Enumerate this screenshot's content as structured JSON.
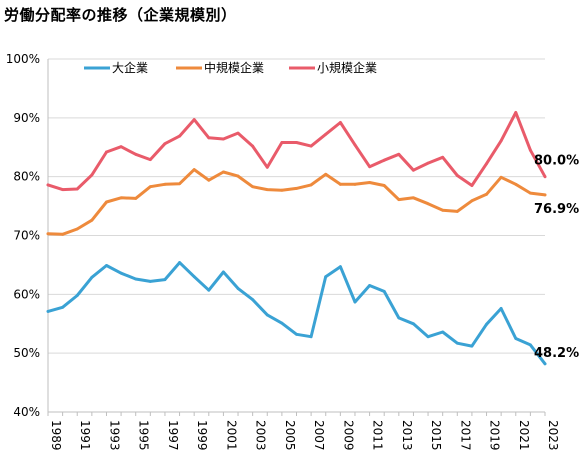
{
  "title": "労働分配率の推移（企業規模別）",
  "chart_data": {
    "type": "line",
    "title": "労働分配率の推移（企業規模別）",
    "x": [
      1989,
      1990,
      1991,
      1992,
      1993,
      1994,
      1995,
      1996,
      1997,
      1998,
      1999,
      2000,
      2001,
      2002,
      2003,
      2004,
      2005,
      2006,
      2007,
      2008,
      2009,
      2010,
      2011,
      2012,
      2013,
      2014,
      2015,
      2016,
      2017,
      2018,
      2019,
      2020,
      2021,
      2022,
      2023
    ],
    "x_tick_labels": [
      "1989",
      "1991",
      "1993",
      "1995",
      "1997",
      "1999",
      "2001",
      "2003",
      "2005",
      "2007",
      "2009",
      "2011",
      "2013",
      "2015",
      "2017",
      "2019",
      "2021",
      "2023"
    ],
    "ylim": [
      40,
      100
    ],
    "y_tick_labels": [
      "40%",
      "50%",
      "60%",
      "70%",
      "80%",
      "90%",
      "100%"
    ],
    "grid": true,
    "legend_position": "top-left",
    "series": [
      {
        "name": "大企業",
        "color": "#3AA2D4",
        "values": [
          57.1,
          57.8,
          59.8,
          62.9,
          64.9,
          63.6,
          62.6,
          62.2,
          62.5,
          65.4,
          63.0,
          60.7,
          63.8,
          61.0,
          59.1,
          56.5,
          55.1,
          53.2,
          52.8,
          63.0,
          64.7,
          58.7,
          61.5,
          60.5,
          56.0,
          55.0,
          52.8,
          53.6,
          51.7,
          51.2,
          54.9,
          57.6,
          52.5,
          51.4,
          48.2
        ],
        "end_label": "48.2%"
      },
      {
        "name": "中規模企業",
        "color": "#EE8A3C",
        "values": [
          70.3,
          70.2,
          71.1,
          72.6,
          75.7,
          76.4,
          76.3,
          78.3,
          78.7,
          78.8,
          81.2,
          79.4,
          80.8,
          80.1,
          78.3,
          77.8,
          77.7,
          78.0,
          78.6,
          80.4,
          78.7,
          78.7,
          79.0,
          78.5,
          76.1,
          76.4,
          75.4,
          74.3,
          74.1,
          75.9,
          77.0,
          79.9,
          78.7,
          77.2,
          76.9
        ],
        "end_label": "76.9%"
      },
      {
        "name": "小規模企業",
        "color": "#E95B6A",
        "values": [
          78.6,
          77.8,
          77.9,
          80.3,
          84.2,
          85.1,
          83.8,
          82.9,
          85.6,
          86.9,
          89.7,
          86.6,
          86.4,
          87.4,
          85.2,
          81.6,
          85.8,
          85.8,
          85.2,
          87.2,
          89.2,
          85.4,
          81.7,
          82.8,
          83.8,
          81.1,
          82.3,
          83.3,
          80.2,
          78.5,
          82.2,
          86.1,
          90.9,
          84.5,
          80.0
        ],
        "end_label": "80.0%"
      }
    ]
  }
}
